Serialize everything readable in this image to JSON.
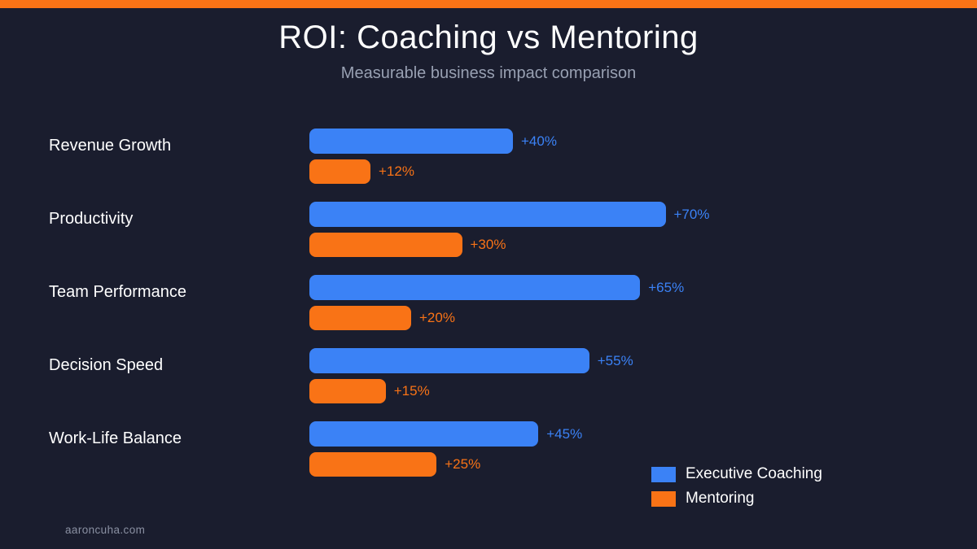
{
  "colors": {
    "background": "#1a1d2e",
    "top_accent": "#f97316",
    "bottom_accent": "#222741",
    "coaching_blue": "#3b82f6",
    "mentoring_orange": "#f97316",
    "title_text": "#ffffff",
    "subtitle_text": "#98a0b2",
    "watermark_text": "#8a90a2"
  },
  "header": {
    "title": "ROI: Coaching vs Mentoring",
    "subtitle": "Measurable business impact comparison"
  },
  "chart_data": {
    "type": "bar",
    "orientation": "horizontal",
    "title": "ROI: Coaching vs Mentoring",
    "subtitle": "Measurable business impact comparison",
    "categories": [
      "Revenue Growth",
      "Productivity",
      "Team Performance",
      "Decision Speed",
      "Work-Life Balance"
    ],
    "series": [
      {
        "name": "Executive Coaching",
        "color": "#3b82f6",
        "values": [
          40,
          70,
          65,
          55,
          45
        ],
        "labels": [
          "+40%",
          "+70%",
          "+65%",
          "+55%",
          "+45%"
        ]
      },
      {
        "name": "Mentoring",
        "color": "#f97316",
        "values": [
          12,
          30,
          20,
          15,
          25
        ],
        "labels": [
          "+12%",
          "+30%",
          "+20%",
          "+15%",
          "+25%"
        ]
      }
    ],
    "value_unit": "%",
    "xlim": [
      0,
      80
    ],
    "grid": false,
    "legend_position": "bottom-right"
  },
  "legend": {
    "items": [
      {
        "label": "Executive Coaching",
        "color": "#3b82f6"
      },
      {
        "label": "Mentoring",
        "color": "#f97316"
      }
    ]
  },
  "footer": {
    "watermark": "aaroncuha.com"
  }
}
